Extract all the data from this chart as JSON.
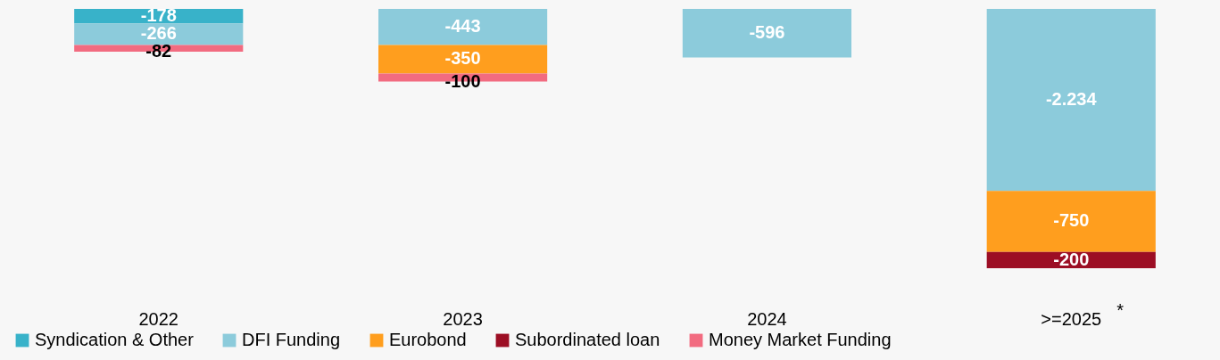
{
  "chart_data": {
    "type": "bar",
    "stacked": true,
    "legend": "bottom",
    "categories": [
      "2022",
      "2023",
      "2024",
      ">=2025"
    ],
    "series": [
      {
        "name": "Syndication & Other",
        "color": "#38b2c9",
        "values": [
          -178,
          null,
          null,
          null
        ],
        "value_labels": [
          "-178",
          null,
          null,
          null
        ]
      },
      {
        "name": "DFI Funding",
        "color": "#8ccbdb",
        "values": [
          -266,
          -443,
          -596,
          -2234
        ],
        "value_labels": [
          "-266",
          "-443",
          "-596",
          "-2.234"
        ]
      },
      {
        "name": "Eurobond",
        "color": "#ff9e1e",
        "values": [
          null,
          -350,
          null,
          -750
        ],
        "value_labels": [
          null,
          "-350",
          null,
          "-750"
        ]
      },
      {
        "name": "Subordinated loan",
        "color": "#9c0e24",
        "values": [
          null,
          null,
          null,
          -200
        ],
        "value_labels": [
          null,
          null,
          null,
          "-200"
        ]
      },
      {
        "name": "Money Market Funding",
        "color": "#f26b80",
        "values": [
          -82,
          -100,
          null,
          null
        ],
        "value_labels": [
          "-82",
          "-100",
          null,
          null
        ]
      }
    ],
    "annotations": [
      "*"
    ]
  }
}
